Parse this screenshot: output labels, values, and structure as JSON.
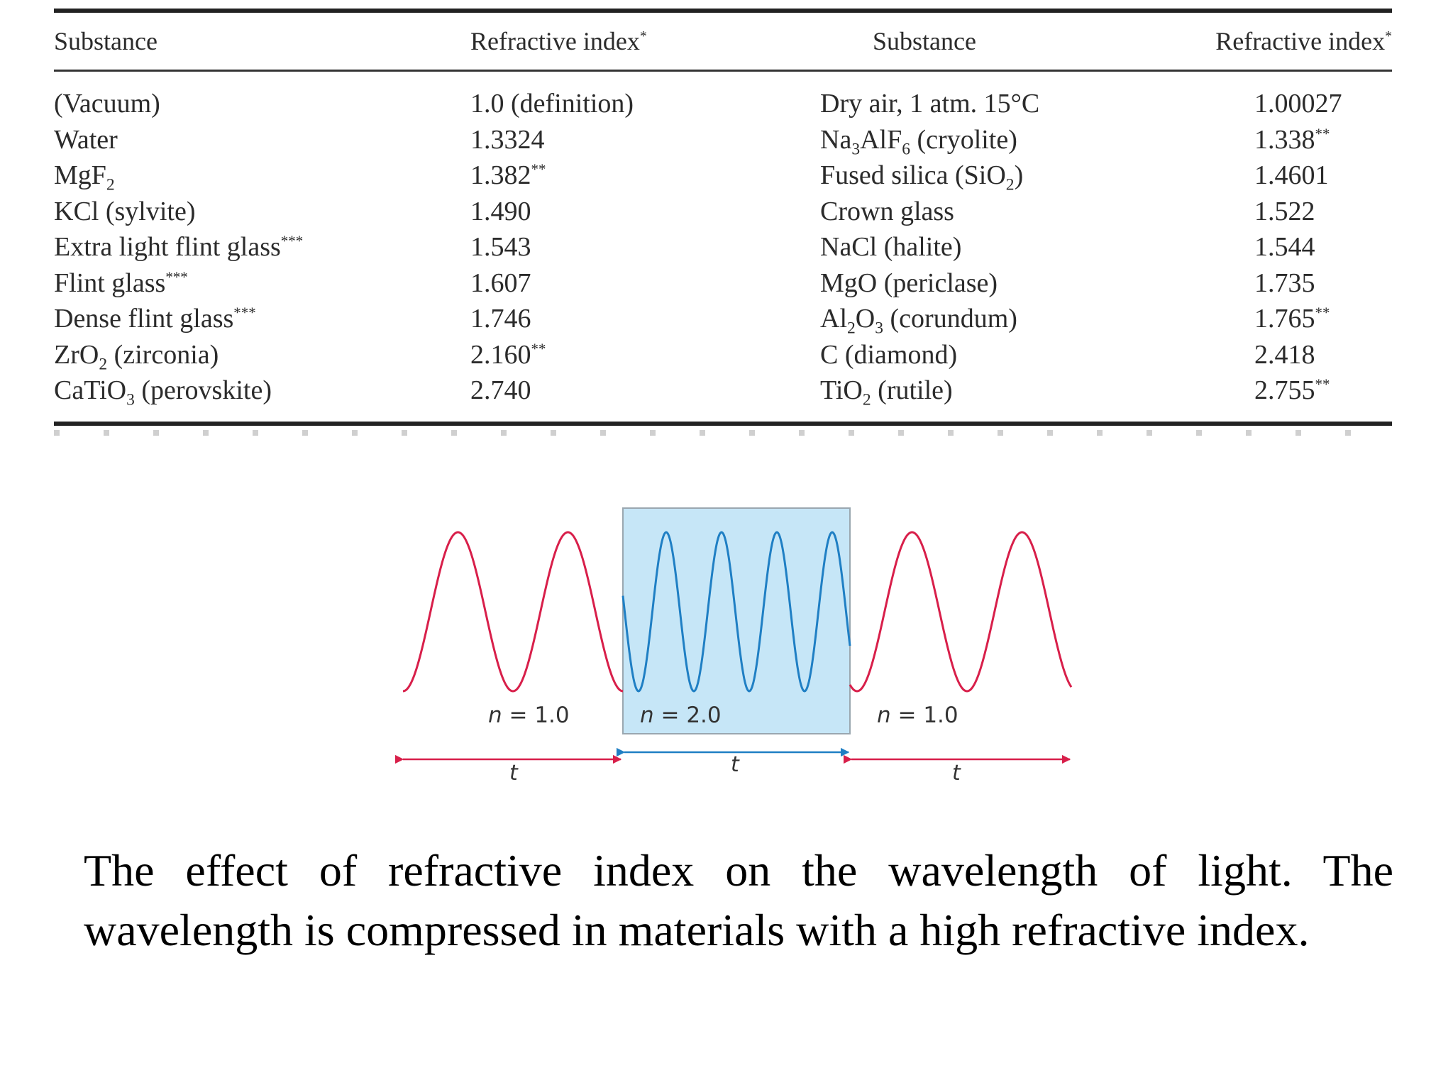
{
  "table": {
    "headers": [
      "Substance",
      "Refractive index",
      "Substance",
      "Refractive index"
    ],
    "header_marks": [
      "",
      "*",
      "",
      "*"
    ],
    "left": [
      {
        "pre": "(Vacuum)",
        "sub": "",
        "post": "",
        "mark": "",
        "value": "1.0 (definition)",
        "vmark": ""
      },
      {
        "pre": "Water",
        "sub": "",
        "post": "",
        "mark": "",
        "value": "1.3324",
        "vmark": ""
      },
      {
        "pre": "MgF",
        "sub": "2",
        "post": "",
        "mark": "",
        "value": "1.382",
        "vmark": "**"
      },
      {
        "pre": "KCl (sylvite)",
        "sub": "",
        "post": "",
        "mark": "",
        "value": "1.490",
        "vmark": ""
      },
      {
        "pre": "Extra light flint glass",
        "sub": "",
        "post": "",
        "mark": "***",
        "value": "1.543",
        "vmark": ""
      },
      {
        "pre": "Flint glass",
        "sub": "",
        "post": "",
        "mark": "***",
        "value": "1.607",
        "vmark": ""
      },
      {
        "pre": "Dense flint glass",
        "sub": "",
        "post": "",
        "mark": "***",
        "value": "1.746",
        "vmark": ""
      },
      {
        "pre": "ZrO",
        "sub": "2",
        "post": " (zirconia)",
        "mark": "",
        "value": "2.160",
        "vmark": "**"
      },
      {
        "pre": "CaTiO",
        "sub": "3",
        "post": " (perovskite)",
        "mark": "",
        "value": "2.740",
        "vmark": ""
      }
    ],
    "right": [
      {
        "parts": [
          {
            "t": "Dry air, 1 atm. 15°C",
            "s": ""
          }
        ],
        "value": "1.00027",
        "vmark": ""
      },
      {
        "parts": [
          {
            "t": "Na",
            "s": "3"
          },
          {
            "t": "AlF",
            "s": "6"
          },
          {
            "t": " (cryolite)",
            "s": ""
          }
        ],
        "value": "1.338",
        "vmark": "**"
      },
      {
        "parts": [
          {
            "t": "Fused silica (SiO",
            "s": "2"
          },
          {
            "t": ")",
            "s": ""
          }
        ],
        "value": "1.4601",
        "vmark": ""
      },
      {
        "parts": [
          {
            "t": "Crown glass",
            "s": ""
          }
        ],
        "value": "1.522",
        "vmark": ""
      },
      {
        "parts": [
          {
            "t": "NaCl (halite)",
            "s": ""
          }
        ],
        "value": "1.544",
        "vmark": ""
      },
      {
        "parts": [
          {
            "t": "MgO (periclase)",
            "s": ""
          }
        ],
        "value": "1.735",
        "vmark": ""
      },
      {
        "parts": [
          {
            "t": "Al",
            "s": "2"
          },
          {
            "t": "O",
            "s": "3"
          },
          {
            "t": " (corundum)",
            "s": ""
          }
        ],
        "value": "1.765",
        "vmark": "**"
      },
      {
        "parts": [
          {
            "t": "C (diamond)",
            "s": ""
          }
        ],
        "value": "2.418",
        "vmark": ""
      },
      {
        "parts": [
          {
            "t": "TiO",
            "s": "2"
          },
          {
            "t": " (rutile)",
            "s": ""
          }
        ],
        "value": "2.755",
        "vmark": "**"
      }
    ]
  },
  "figure": {
    "labels": {
      "left": {
        "var": "n",
        "text": " = 1.0"
      },
      "middle": {
        "var": "n",
        "text": " = 2.0"
      },
      "right": {
        "var": "n",
        "text": " = 1.0"
      }
    },
    "thickness_label": "t",
    "colors": {
      "wave_outside": "#d81f4a",
      "wave_inside": "#1f7fc4",
      "medium_fill": "#c6e6f7",
      "medium_border": "#9aa7b0"
    }
  },
  "caption": "The effect of refractive index on the wavelength of light. The wavelength is compressed in materials with a high refractive index."
}
